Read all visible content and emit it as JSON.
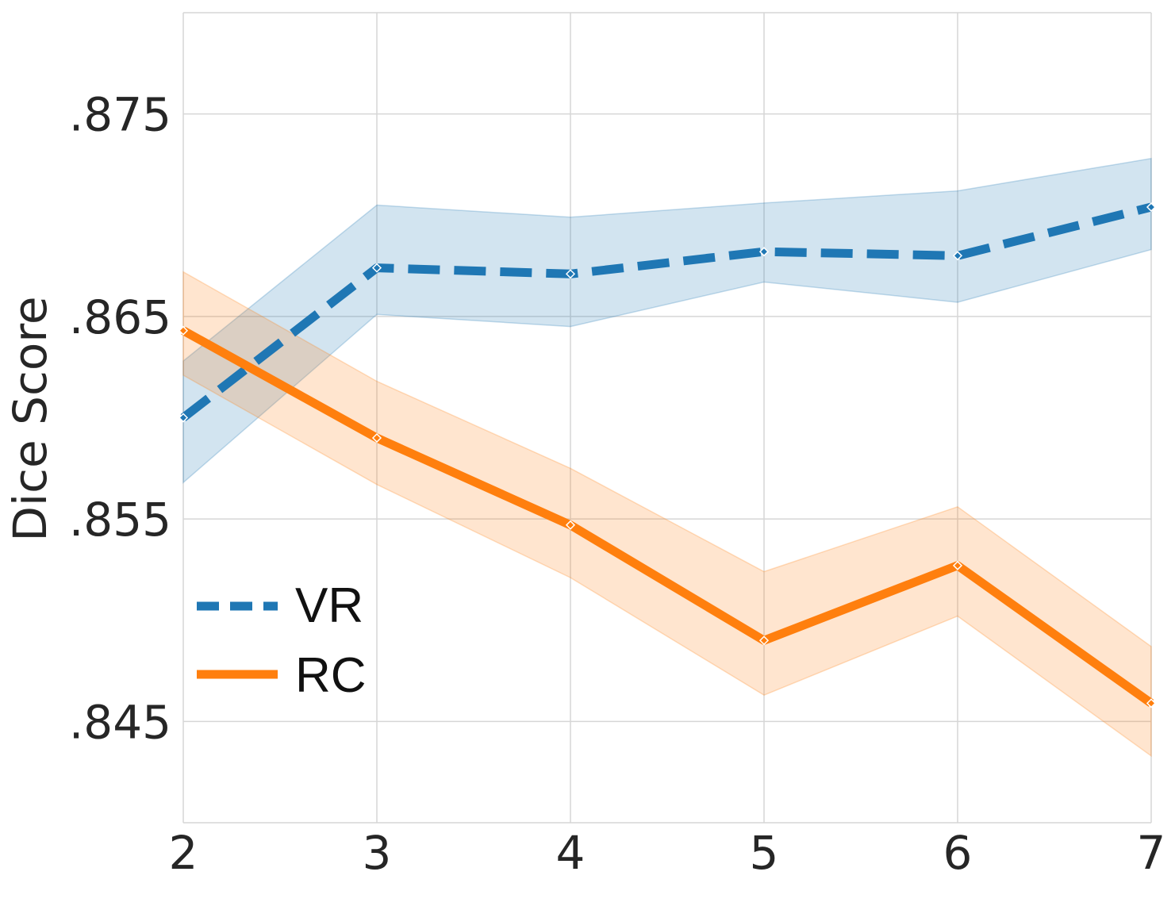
{
  "chart_data": {
    "type": "line",
    "title": "",
    "xlabel": "",
    "ylabel": "Dice Score",
    "x": [
      2,
      3,
      4,
      5,
      6,
      7
    ],
    "xlim": [
      2,
      7
    ],
    "ylim": [
      0.84,
      0.88
    ],
    "yticks": [
      0.845,
      0.855,
      0.865,
      0.875
    ],
    "ytick_labels": [
      ".845",
      ".855",
      ".865",
      ".875"
    ],
    "xtick_labels": [
      "2",
      "3",
      "4",
      "5",
      "6",
      "7"
    ],
    "grid": true,
    "legend_position": "lower-left",
    "series": [
      {
        "name": "VR",
        "style": "dashed",
        "color": "#1f77b4",
        "band_color": "#1f77b4",
        "values": [
          0.86,
          0.8674,
          0.8671,
          0.8682,
          0.868,
          0.8704
        ],
        "lower": [
          0.8568,
          0.8651,
          0.8645,
          0.8667,
          0.8657,
          0.8683
        ],
        "upper": [
          0.8628,
          0.8705,
          0.8699,
          0.8706,
          0.8712,
          0.8728
        ]
      },
      {
        "name": "RC",
        "style": "solid",
        "color": "#ff7f0e",
        "band_color": "#ff7f0e",
        "values": [
          0.8643,
          0.859,
          0.8547,
          0.849,
          0.8527,
          0.8459
        ],
        "lower": [
          0.8621,
          0.8567,
          0.8521,
          0.8463,
          0.8502,
          0.8433
        ],
        "upper": [
          0.8672,
          0.8618,
          0.8575,
          0.8524,
          0.8556,
          0.8487
        ]
      }
    ]
  }
}
